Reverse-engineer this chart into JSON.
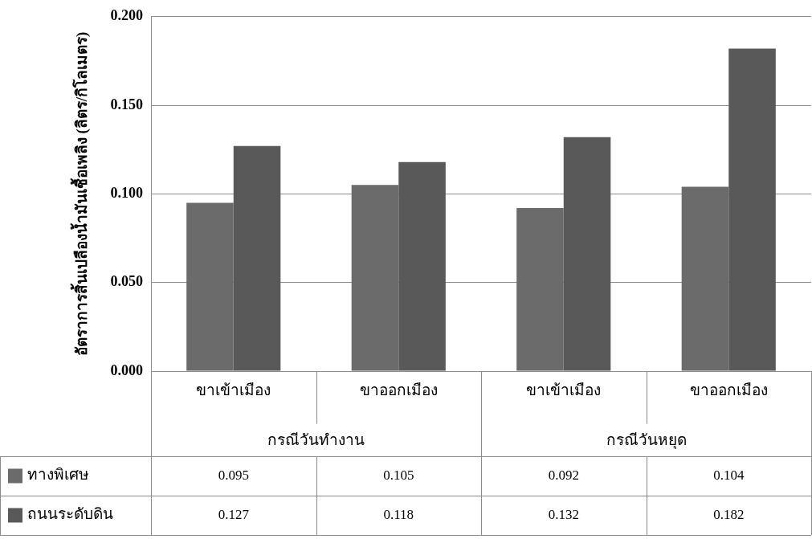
{
  "chart_data": {
    "type": "bar",
    "ylabel": "อัตราการสิ้นเปลืองน้ำมันเชื้อเพลิง (ลิตร/กิโลเมตร)",
    "categories": [
      "ขาเข้าเมือง",
      "ขาออกเมือง",
      "ขาเข้าเมือง",
      "ขาออกเมือง"
    ],
    "annotations": [
      "กรณีวันทำงาน",
      "กรณีวันหยุด"
    ],
    "series": [
      {
        "name": "ทางพิเศษ",
        "color": "#6b6b6b",
        "values": [
          0.095,
          0.105,
          0.092,
          0.104
        ]
      },
      {
        "name": "ถนนระดับดิน",
        "color": "#595959",
        "values": [
          0.127,
          0.118,
          0.132,
          0.182
        ]
      }
    ],
    "ylim": [
      0,
      0.2
    ],
    "yticks": [
      "0.000",
      "0.050",
      "0.100",
      "0.150",
      "0.200"
    ],
    "grid": "y",
    "legend": "bottom",
    "data_labels": true
  }
}
